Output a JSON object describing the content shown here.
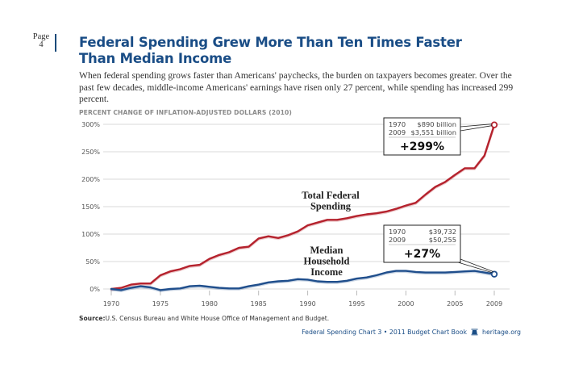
{
  "page": {
    "label": "Page",
    "number": "4"
  },
  "title_line1": "Federal Spending Grew More Than Ten Times Faster",
  "title_line2": "Than Median Income",
  "intro": "When federal spending grows faster than Americans' paychecks, the burden on taxpayers becomes greater. Over the past few decades, middle-income Americans' earnings have risen only 27 percent, while spending has increased 299 percent.",
  "source_label": "Source:",
  "source_text": "U.S. Census Bureau and White House Office of Management and Budget.",
  "footer": {
    "text": "Federal Spending Chart 3 • 2011 Budget Chart Book",
    "logo_icon": "liberty-bell-icon",
    "site": "heritage.org"
  },
  "colors": {
    "title": "#1a4d86",
    "spending": "#b5222d",
    "income": "#1f4e8c",
    "grid": "#d9d9d9"
  },
  "chart_data": {
    "type": "line",
    "title": "PERCENT CHANGE OF INFLATION-ADJUSTED DOLLARS (2010)",
    "xlabel": "",
    "ylabel": "",
    "xlim": [
      1970,
      2009
    ],
    "ylim": [
      0,
      300
    ],
    "grid": true,
    "x_ticks": [
      "1970",
      "1975",
      "1980",
      "1985",
      "1990",
      "1995",
      "2000",
      "2005",
      "2009"
    ],
    "y_ticks": [
      "0%",
      "50%",
      "100%",
      "150%",
      "200%",
      "250%",
      "300%"
    ],
    "x": [
      1970,
      1971,
      1972,
      1973,
      1974,
      1975,
      1976,
      1977,
      1978,
      1979,
      1980,
      1981,
      1982,
      1983,
      1984,
      1985,
      1986,
      1987,
      1988,
      1989,
      1990,
      1991,
      1992,
      1993,
      1994,
      1995,
      1996,
      1997,
      1998,
      1999,
      2000,
      2001,
      2002,
      2003,
      2004,
      2005,
      2006,
      2007,
      2008,
      2009
    ],
    "series": [
      {
        "name": "Total Federal Spending",
        "label_lines": [
          "Total Federal",
          "Spending"
        ],
        "color": "#b5222d",
        "values": [
          0,
          2,
          8,
          10,
          10,
          25,
          32,
          36,
          42,
          44,
          55,
          62,
          67,
          75,
          77,
          92,
          96,
          93,
          98,
          105,
          116,
          121,
          126,
          126,
          129,
          133,
          136,
          138,
          141,
          146,
          152,
          157,
          172,
          186,
          195,
          208,
          220,
          220,
          243,
          299
        ]
      },
      {
        "name": "Median Household Income",
        "label_lines": [
          "Median",
          "Household",
          "Income"
        ],
        "color": "#1f4e8c",
        "values": [
          0,
          -2,
          2,
          5,
          3,
          -2,
          0,
          1,
          5,
          6,
          4,
          2,
          1,
          1,
          5,
          8,
          12,
          14,
          15,
          18,
          17,
          14,
          13,
          13,
          15,
          19,
          21,
          25,
          30,
          33,
          33,
          31,
          30,
          30,
          30,
          31,
          32,
          33,
          30,
          27
        ]
      }
    ],
    "annotations": [
      {
        "series": "Total Federal Spending",
        "rows": [
          [
            "1970",
            "$890 billion"
          ],
          [
            "2009",
            "$3,551 billion"
          ]
        ],
        "change": "+299%"
      },
      {
        "series": "Median Household Income",
        "rows": [
          [
            "1970",
            "$39,732"
          ],
          [
            "2009",
            "$50,255"
          ]
        ],
        "change": "+27%"
      }
    ]
  }
}
